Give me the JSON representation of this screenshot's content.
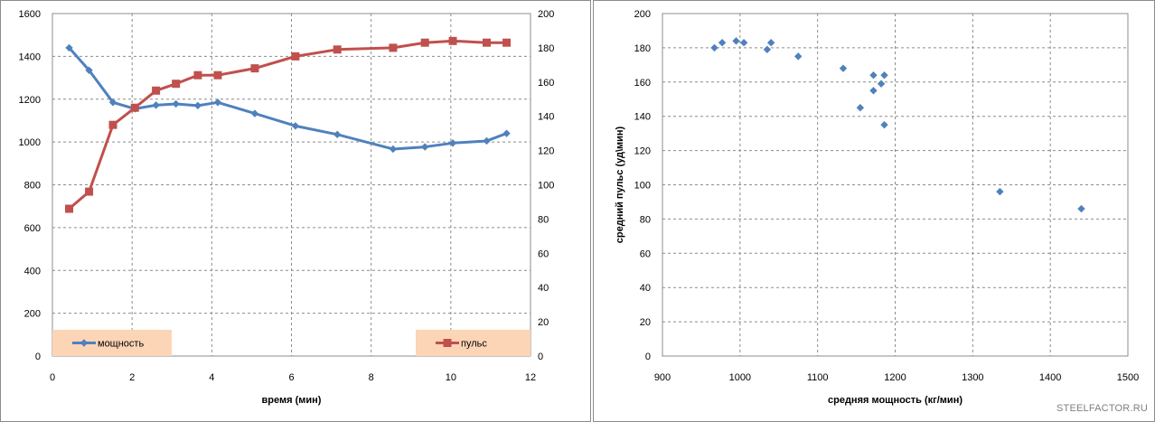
{
  "watermark": "STEELFACTOR.RU",
  "chart_data": [
    {
      "type": "line",
      "title": "",
      "xlabel": "время (мин)",
      "ylabel": "",
      "y2label": "",
      "xlim": [
        0,
        12
      ],
      "ylim": [
        0,
        1600
      ],
      "y2lim": [
        0,
        200
      ],
      "x_ticks": [
        0,
        2,
        4,
        6,
        8,
        10,
        12
      ],
      "y_ticks": [
        0,
        200,
        400,
        600,
        800,
        1000,
        1200,
        1400,
        1600
      ],
      "y2_ticks": [
        0,
        20,
        40,
        60,
        80,
        100,
        120,
        140,
        160,
        180,
        200
      ],
      "grid": true,
      "legend": [
        "bottom-left",
        "bottom-right"
      ],
      "series": [
        {
          "name": "мощность",
          "axis": "left",
          "color": "#4f81bd",
          "marker": "diamond",
          "x": [
            0.42,
            0.92,
            1.52,
            2.07,
            2.6,
            3.1,
            3.65,
            4.15,
            5.08,
            6.1,
            7.15,
            8.55,
            9.35,
            10.05,
            10.9,
            11.4
          ],
          "y": [
            1440,
            1335,
            1185,
            1155,
            1172,
            1178,
            1170,
            1185,
            1133,
            1075,
            1035,
            967,
            977,
            995,
            1005,
            1040
          ]
        },
        {
          "name": "пульс",
          "axis": "right",
          "color": "#c0504d",
          "marker": "square",
          "x": [
            0.42,
            0.92,
            1.52,
            2.07,
            2.6,
            3.1,
            3.65,
            4.15,
            5.08,
            6.1,
            7.15,
            8.55,
            9.35,
            10.05,
            10.9,
            11.4
          ],
          "y": [
            86,
            96,
            135,
            145,
            155,
            159,
            164,
            164,
            168,
            175,
            179,
            180,
            183,
            184,
            183,
            183
          ]
        }
      ]
    },
    {
      "type": "scatter",
      "title": "",
      "xlabel": "средняя мощность  (кг/мин)",
      "ylabel": "средний пульс  (уд\\мин)",
      "xlim": [
        900,
        1500
      ],
      "ylim": [
        0,
        200
      ],
      "x_ticks": [
        900,
        1000,
        1100,
        1200,
        1300,
        1400,
        1500
      ],
      "y_ticks": [
        0,
        20,
        40,
        60,
        80,
        100,
        120,
        140,
        160,
        180,
        200
      ],
      "grid": true,
      "series": [
        {
          "color": "#4f81bd",
          "marker": "diamond",
          "x": [
            967,
            977,
            995,
            1005,
            1035,
            1040,
            1075,
            1133,
            1155,
            1172,
            1172,
            1182,
            1186,
            1186,
            1335,
            1440
          ],
          "y": [
            180,
            183,
            184,
            183,
            179,
            183,
            175,
            168,
            145,
            164,
            155,
            159,
            164,
            135,
            96,
            86
          ]
        }
      ]
    }
  ]
}
